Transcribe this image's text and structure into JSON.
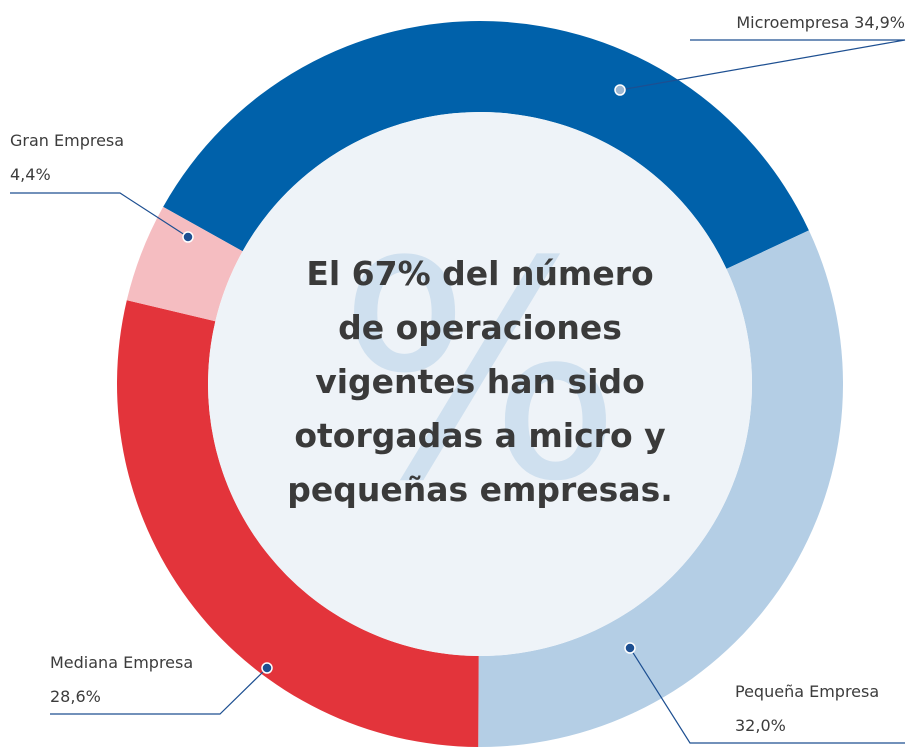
{
  "chart_data": {
    "type": "donut",
    "categories": [
      "Microempresa",
      "Pequeña Empresa",
      "Mediana Empresa",
      "Gran Empresa"
    ],
    "values": [
      34.9,
      32.0,
      28.6,
      4.4
    ],
    "value_labels": [
      "34,9%",
      "32,0%",
      "28,6%",
      "4,4%"
    ],
    "colors": [
      "#0061aa",
      "#b4cee5",
      "#e3343b",
      "#f5bdc1"
    ],
    "watermark": "%",
    "center_text": [
      "El 67% del número",
      "de operaciones",
      "vigentes han sido",
      "otorgadas a micro y",
      "pequeñas empresas."
    ]
  }
}
